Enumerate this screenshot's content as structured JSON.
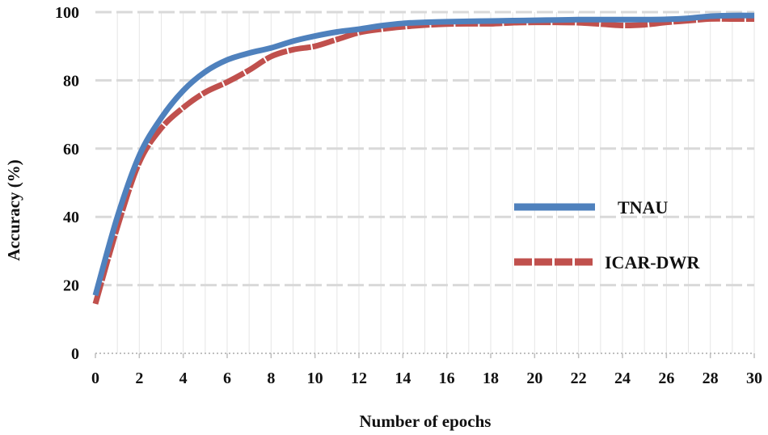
{
  "chart_data": {
    "type": "line",
    "title": "",
    "xlabel": "Number of epochs",
    "ylabel": "Accuracy (%)",
    "xlim": [
      0,
      30
    ],
    "ylim": [
      0,
      100
    ],
    "xticks": [
      0,
      2,
      4,
      6,
      8,
      10,
      12,
      14,
      16,
      18,
      20,
      22,
      24,
      26,
      28,
      30
    ],
    "yticks": [
      0,
      20,
      40,
      60,
      80,
      100
    ],
    "grid": true,
    "legend_position": "right-middle",
    "series": [
      {
        "name": "TNAU",
        "color": "#4f81bd",
        "x": [
          0,
          1,
          2,
          3,
          4,
          5,
          6,
          7,
          8,
          9,
          10,
          11,
          12,
          13,
          14,
          15,
          16,
          17,
          18,
          19,
          20,
          21,
          22,
          23,
          24,
          25,
          26,
          27,
          28,
          29,
          30
        ],
        "values": [
          17,
          40,
          58,
          69,
          77,
          82.5,
          86,
          88,
          89.5,
          91.5,
          93,
          94.2,
          95,
          96,
          96.7,
          97,
          97.2,
          97.3,
          97.4,
          97.5,
          97.6,
          97.7,
          97.8,
          97.8,
          97.8,
          97.8,
          97.9,
          98.2,
          98.8,
          99,
          99
        ]
      },
      {
        "name": "ICAR-DWR",
        "color": "#c0504d",
        "x": [
          0,
          1,
          2,
          3,
          4,
          5,
          6,
          7,
          8,
          9,
          10,
          11,
          12,
          13,
          14,
          15,
          16,
          17,
          18,
          19,
          20,
          21,
          22,
          23,
          24,
          25,
          26,
          27,
          28,
          29,
          30
        ],
        "values": [
          14.5,
          37,
          56,
          66,
          72,
          76.5,
          79.5,
          83,
          87,
          89,
          90,
          92,
          94,
          95,
          95.7,
          96.2,
          96.5,
          96.6,
          96.6,
          96.9,
          97,
          97,
          96.9,
          96.5,
          96.1,
          96.3,
          97,
          97.5,
          98,
          98,
          98
        ]
      }
    ]
  }
}
